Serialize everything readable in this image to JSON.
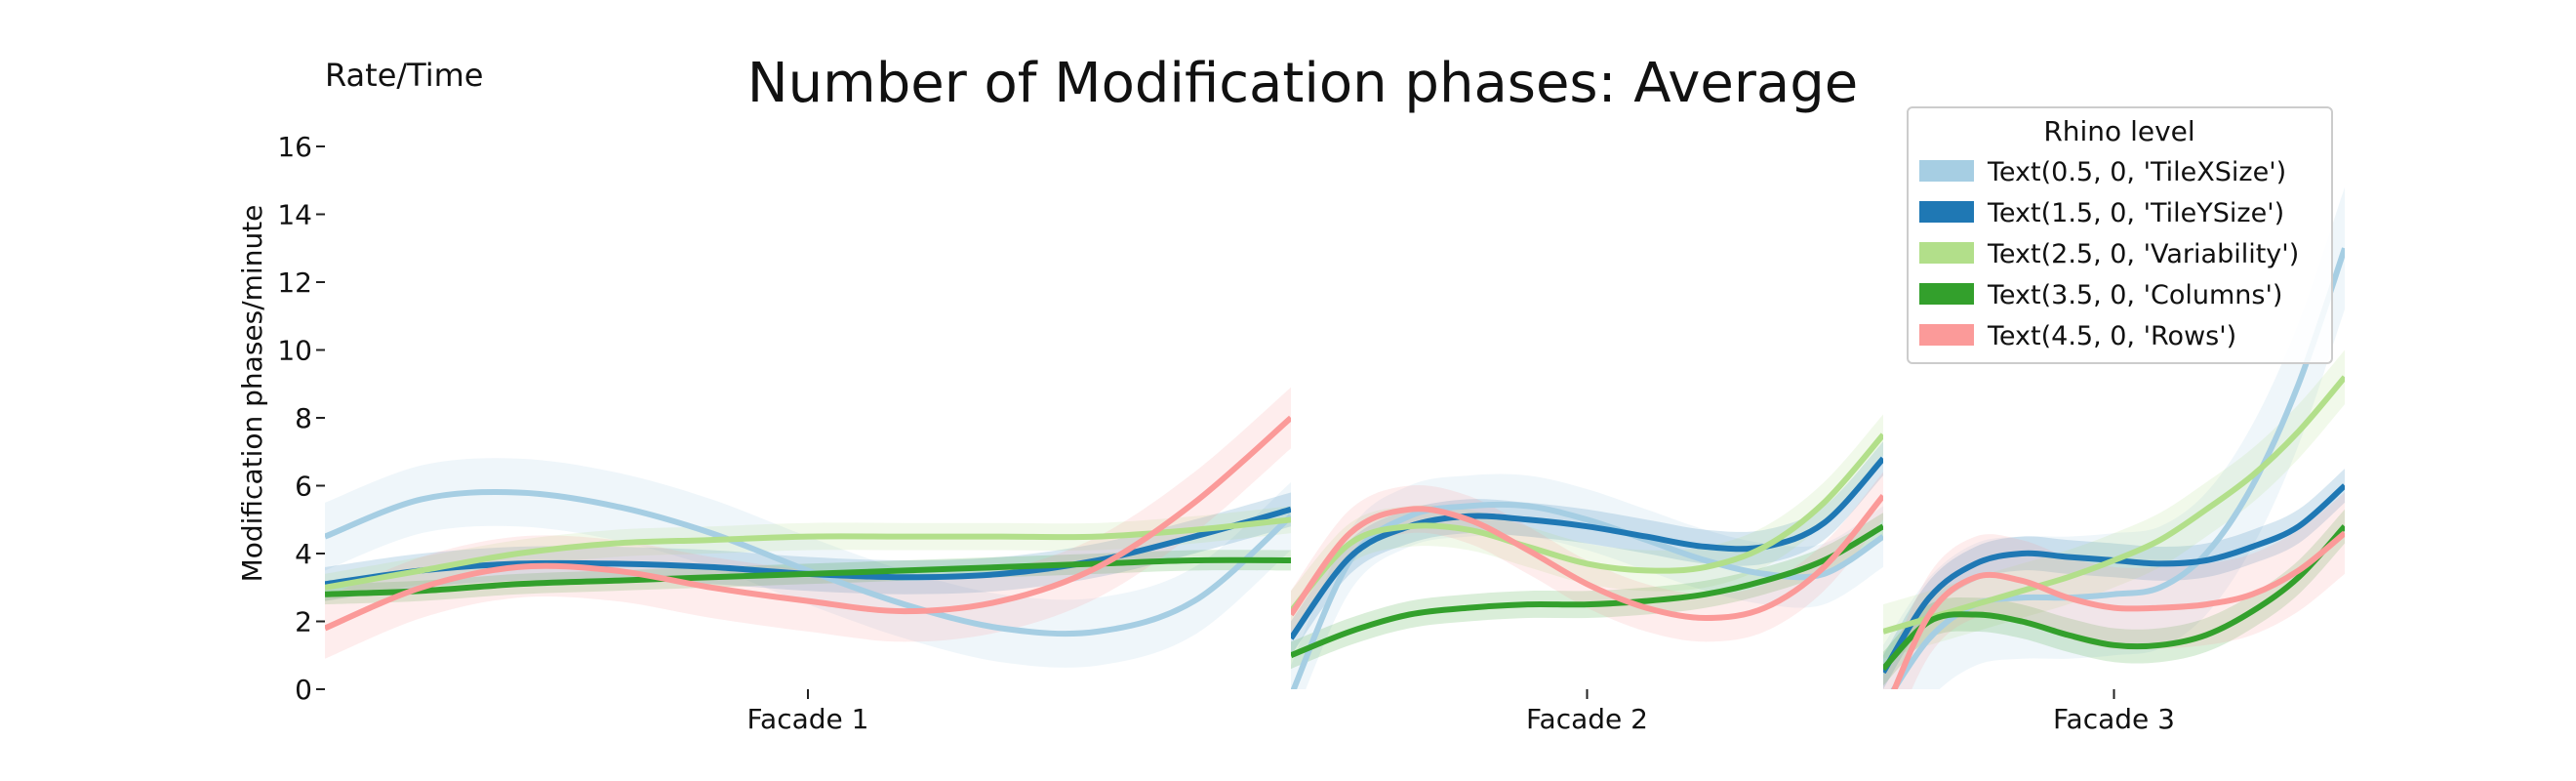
{
  "chart_data": {
    "type": "line",
    "title": "Number of Modification phases: Average",
    "corner_label": "Rate/Time",
    "xlabel": "",
    "ylabel": "Modification phases/minute",
    "ylim": [
      0,
      16
    ],
    "yticks": [
      0,
      2,
      4,
      6,
      8,
      10,
      12,
      14,
      16
    ],
    "grid": false,
    "legend_title": "Rhino level",
    "legend_position": "top-right",
    "panels": [
      {
        "label": "Facade 1"
      },
      {
        "label": "Facade 2"
      },
      {
        "label": "Facade 3"
      }
    ],
    "series": [
      {
        "name": "Text(0.5, 0, 'TileXSize')",
        "color": "#a6cee3",
        "panels": [
          {
            "x": [
              0,
              0.1,
              0.2,
              0.3,
              0.4,
              0.5,
              0.6,
              0.7,
              0.8,
              0.9,
              1.0
            ],
            "y": [
              4.5,
              5.6,
              5.8,
              5.4,
              4.6,
              3.5,
              2.5,
              1.8,
              1.7,
              2.6,
              5.1
            ],
            "band": 1.0
          },
          {
            "x": [
              0,
              0.1,
              0.2,
              0.3,
              0.4,
              0.5,
              0.6,
              0.7,
              0.8,
              0.9,
              1.0
            ],
            "y": [
              -0.2,
              3.8,
              5.1,
              5.4,
              5.4,
              5.0,
              4.4,
              3.8,
              3.4,
              3.4,
              4.5
            ],
            "band": 0.9
          },
          {
            "x": [
              0,
              0.1,
              0.2,
              0.3,
              0.4,
              0.5,
              0.6,
              0.7,
              0.8,
              0.9,
              1.0
            ],
            "y": [
              -0.5,
              1.5,
              2.5,
              2.7,
              2.7,
              2.8,
              3.0,
              4.0,
              6.0,
              9.0,
              13.0
            ],
            "band": 1.8
          }
        ]
      },
      {
        "name": "Text(1.5, 0, 'TileYSize')",
        "color": "#1f78b4",
        "panels": [
          {
            "x": [
              0,
              0.1,
              0.2,
              0.3,
              0.4,
              0.5,
              0.6,
              0.7,
              0.8,
              0.9,
              1.0
            ],
            "y": [
              3.1,
              3.5,
              3.7,
              3.7,
              3.6,
              3.4,
              3.3,
              3.4,
              3.8,
              4.5,
              5.3
            ],
            "band": 0.5
          },
          {
            "x": [
              0,
              0.1,
              0.2,
              0.3,
              0.4,
              0.5,
              0.6,
              0.7,
              0.8,
              0.9,
              1.0
            ],
            "y": [
              1.5,
              3.9,
              4.8,
              5.1,
              5.0,
              4.8,
              4.5,
              4.2,
              4.2,
              4.9,
              6.8
            ],
            "band": 0.5
          },
          {
            "x": [
              0,
              0.1,
              0.2,
              0.3,
              0.4,
              0.5,
              0.6,
              0.7,
              0.8,
              0.9,
              1.0
            ],
            "y": [
              0.5,
              2.7,
              3.7,
              4.0,
              3.9,
              3.8,
              3.7,
              3.8,
              4.2,
              4.8,
              6.0
            ],
            "band": 0.5
          }
        ]
      },
      {
        "name": "Text(2.5, 0, 'Variability')",
        "color": "#b2df8a",
        "panels": [
          {
            "x": [
              0,
              0.1,
              0.2,
              0.3,
              0.4,
              0.5,
              0.6,
              0.7,
              0.8,
              0.9,
              1.0
            ],
            "y": [
              3.0,
              3.5,
              4.0,
              4.3,
              4.4,
              4.5,
              4.5,
              4.5,
              4.5,
              4.7,
              5.0
            ],
            "band": 0.4
          },
          {
            "x": [
              0,
              0.1,
              0.2,
              0.3,
              0.4,
              0.5,
              0.6,
              0.7,
              0.8,
              0.9,
              1.0
            ],
            "y": [
              2.3,
              4.3,
              4.8,
              4.7,
              4.2,
              3.7,
              3.5,
              3.6,
              4.2,
              5.5,
              7.5
            ],
            "band": 0.6
          },
          {
            "x": [
              0,
              0.1,
              0.2,
              0.3,
              0.4,
              0.5,
              0.6,
              0.7,
              0.8,
              0.9,
              1.0
            ],
            "y": [
              1.7,
              2.1,
              2.5,
              2.9,
              3.3,
              3.8,
              4.4,
              5.3,
              6.3,
              7.6,
              9.2
            ],
            "band": 0.8
          }
        ]
      },
      {
        "name": "Text(3.5, 0, 'Columns')",
        "color": "#33a02c",
        "panels": [
          {
            "x": [
              0,
              0.1,
              0.2,
              0.3,
              0.4,
              0.5,
              0.6,
              0.7,
              0.8,
              0.9,
              1.0
            ],
            "y": [
              2.8,
              2.9,
              3.1,
              3.2,
              3.3,
              3.4,
              3.5,
              3.6,
              3.7,
              3.8,
              3.8
            ],
            "band": 0.3
          },
          {
            "x": [
              0,
              0.1,
              0.2,
              0.3,
              0.4,
              0.5,
              0.6,
              0.7,
              0.8,
              0.9,
              1.0
            ],
            "y": [
              1.0,
              1.7,
              2.2,
              2.4,
              2.5,
              2.5,
              2.6,
              2.8,
              3.2,
              3.8,
              4.8
            ],
            "band": 0.4
          },
          {
            "x": [
              0,
              0.1,
              0.2,
              0.3,
              0.4,
              0.5,
              0.6,
              0.7,
              0.8,
              0.9,
              1.0
            ],
            "y": [
              0.6,
              2.0,
              2.2,
              2.0,
              1.6,
              1.3,
              1.3,
              1.6,
              2.3,
              3.3,
              4.8
            ],
            "band": 0.5
          }
        ]
      },
      {
        "name": "Text(4.5, 0, 'Rows')",
        "color": "#fb9a99",
        "panels": [
          {
            "x": [
              0,
              0.1,
              0.2,
              0.3,
              0.4,
              0.5,
              0.6,
              0.7,
              0.8,
              0.9,
              1.0
            ],
            "y": [
              1.8,
              3.0,
              3.6,
              3.5,
              3.0,
              2.6,
              2.3,
              2.6,
              3.6,
              5.5,
              8.0
            ],
            "band": 0.9
          },
          {
            "x": [
              0,
              0.1,
              0.2,
              0.3,
              0.4,
              0.5,
              0.6,
              0.7,
              0.8,
              0.9,
              1.0
            ],
            "y": [
              2.2,
              4.6,
              5.3,
              5.0,
              4.1,
              3.1,
              2.4,
              2.1,
              2.4,
              3.6,
              5.7
            ],
            "band": 0.7
          },
          {
            "x": [
              0,
              0.1,
              0.2,
              0.3,
              0.4,
              0.5,
              0.6,
              0.7,
              0.8,
              0.9,
              1.0
            ],
            "y": [
              -0.8,
              2.2,
              3.3,
              3.2,
              2.7,
              2.4,
              2.4,
              2.5,
              2.8,
              3.5,
              4.6
            ],
            "band": 1.2
          }
        ]
      }
    ]
  }
}
